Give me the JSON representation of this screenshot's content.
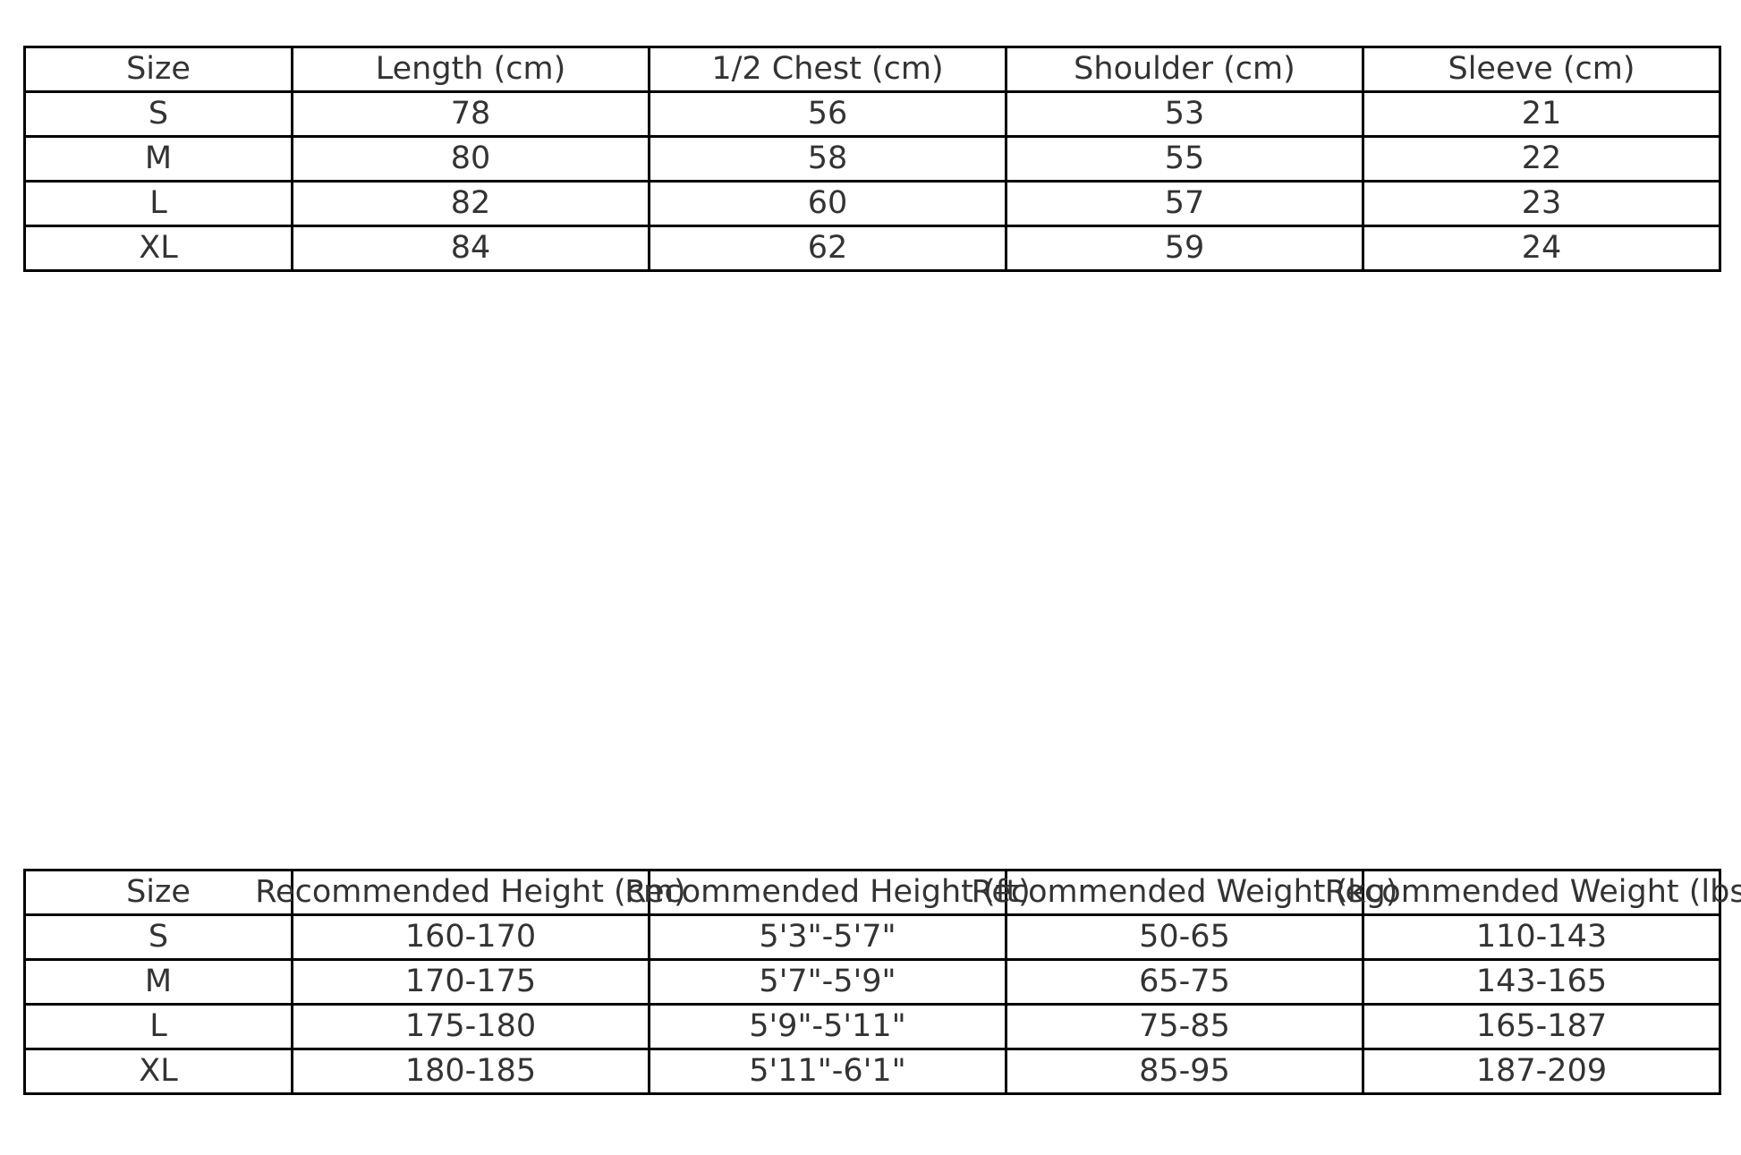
{
  "measurements_table": {
    "headers": [
      "Size",
      "Length (cm)",
      "1/2 Chest (cm)",
      "Shoulder (cm)",
      "Sleeve (cm)"
    ],
    "rows": [
      [
        "S",
        "78",
        "56",
        "53",
        "21"
      ],
      [
        "M",
        "80",
        "58",
        "55",
        "22"
      ],
      [
        "L",
        "82",
        "60",
        "57",
        "23"
      ],
      [
        "XL",
        "84",
        "62",
        "59",
        "24"
      ]
    ]
  },
  "recommendation_table": {
    "headers": [
      "Size",
      "Recommended Height (cm)",
      "Recommended Height (ft)",
      "Recommended Weight (kg)",
      "Recommended Weight (lbs)"
    ],
    "rows": [
      [
        "S",
        "160-170",
        "5'3\"-5'7\"",
        "50-65",
        "110-143"
      ],
      [
        "M",
        "170-175",
        "5'7\"-5'9\"",
        "65-75",
        "143-165"
      ],
      [
        "L",
        "175-180",
        "5'9\"-5'11\"",
        "75-85",
        "165-187"
      ],
      [
        "XL",
        "180-185",
        "5'11\"-6'1\"",
        "85-95",
        "187-209"
      ]
    ]
  }
}
